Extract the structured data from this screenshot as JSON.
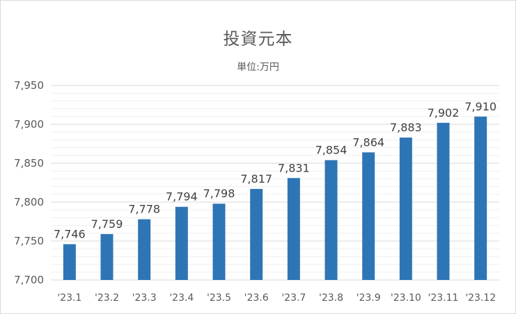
{
  "chart_data": {
    "type": "bar",
    "title": "投資元本",
    "subtitle": "単位:万円",
    "xlabel": "",
    "ylabel": "",
    "categories": [
      "'23.1",
      "'23.2",
      "'23.3",
      "'23.4",
      "'23.5",
      "'23.6",
      "'23.7",
      "'23.8",
      "'23.9",
      "'23.10",
      "'23.11",
      "'23.12"
    ],
    "values": [
      7746,
      7759,
      7778,
      7794,
      7798,
      7817,
      7831,
      7854,
      7864,
      7883,
      7902,
      7910
    ],
    "ylim": [
      7700,
      7950
    ],
    "yticks": [
      7700,
      7750,
      7800,
      7850,
      7900,
      7950
    ],
    "grid": true,
    "data_labels": true,
    "bar_color": "#2e75b6"
  }
}
